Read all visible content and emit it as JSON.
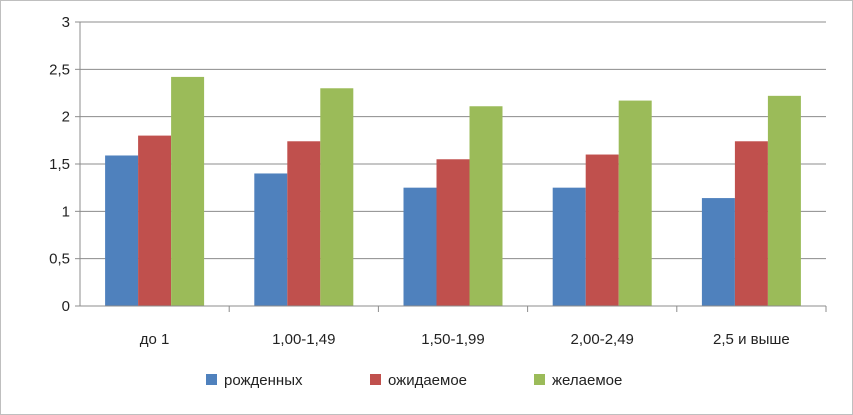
{
  "chart_data": {
    "type": "bar",
    "title": "",
    "xlabel": "",
    "ylabel": "",
    "categories": [
      "до 1",
      "1,00-1,49",
      "1,50-1,99",
      "2,00-2,49",
      "2,5 и выше"
    ],
    "series": [
      {
        "name": "рожденных",
        "color": "#4f81bd",
        "values": [
          1.59,
          1.4,
          1.25,
          1.25,
          1.14
        ]
      },
      {
        "name": "ожидаемое",
        "color": "#c0504d",
        "values": [
          1.8,
          1.74,
          1.55,
          1.6,
          1.74
        ]
      },
      {
        "name": "желаемое",
        "color": "#9bbb59",
        "values": [
          2.42,
          2.3,
          2.11,
          2.17,
          2.22
        ]
      }
    ],
    "ylim": [
      0,
      3
    ],
    "yticks": [
      "0",
      "0,5",
      "1",
      "1,5",
      "2",
      "2,5",
      "3"
    ],
    "grid": true,
    "legend": "bottom"
  }
}
